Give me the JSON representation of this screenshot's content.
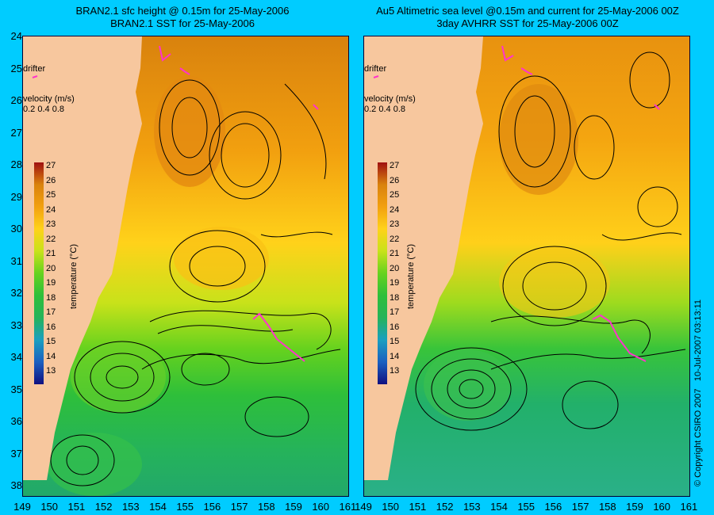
{
  "left": {
    "title_line1": "BRAN2.1 sfc height @ 0.15m for 25-May-2006",
    "title_line2": "BRAN2.1 SST for 25-May-2006"
  },
  "right": {
    "title_line1": "Au5 Altimetric sea level  @0.15m and current for 25-May-2006 00Z",
    "title_line2": "3day AVHRR SST for 25-May-2006 00Z"
  },
  "y_ticks": [
    "24",
    "25",
    "26",
    "27",
    "28",
    "29",
    "30",
    "31",
    "32",
    "33",
    "34",
    "35",
    "36",
    "37",
    "38"
  ],
  "x_ticks": [
    "149",
    "150",
    "151",
    "152",
    "153",
    "154",
    "155",
    "156",
    "157",
    "158",
    "159",
    "160",
    "161"
  ],
  "legend": {
    "drifter_label": "drifter",
    "velocity_label": "velocity (m/s)",
    "velocity_scale": "0.2 0.4 0.8"
  },
  "colorbar": {
    "labels": [
      "27",
      "26",
      "25",
      "24",
      "23",
      "22",
      "21",
      "20",
      "19",
      "18",
      "17",
      "16",
      "15",
      "14",
      "13"
    ],
    "title": "temperature (°C)"
  },
  "copyright": "© Copyright CSIRO 2007",
  "timestamp": "10-Jul-2007 03:13:11",
  "colors": {
    "background": "#00ccff",
    "land": "#f7c79e",
    "drifter": "#ff33cc"
  }
}
